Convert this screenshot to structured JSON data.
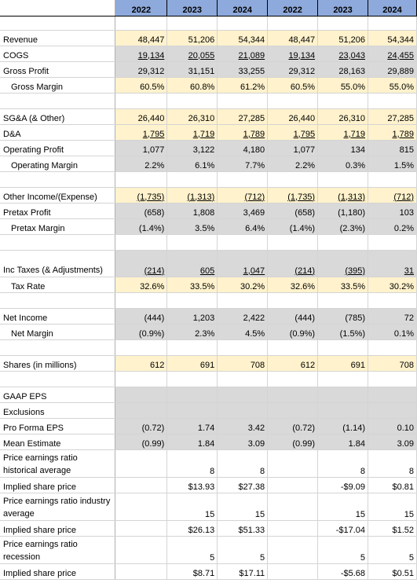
{
  "header": {
    "years": [
      "2022",
      "2023",
      "2024",
      "2022",
      "2023",
      "2024"
    ]
  },
  "rows": {
    "revenue": {
      "label": "Revenue",
      "values": [
        "48,447",
        "51,206",
        "54,344",
        "48,447",
        "51,206",
        "54,344"
      ]
    },
    "cogs": {
      "label": "COGS",
      "values": [
        "19,134",
        "20,055",
        "21,089",
        "19,134",
        "23,043",
        "24,455"
      ]
    },
    "gross_profit": {
      "label": "Gross Profit",
      "values": [
        "29,312",
        "31,151",
        "33,255",
        "29,312",
        "28,163",
        "29,889"
      ]
    },
    "gross_margin": {
      "label": "Gross Margin",
      "values": [
        "60.5%",
        "60.8%",
        "61.2%",
        "60.5%",
        "55.0%",
        "55.0%"
      ]
    },
    "sga": {
      "label": "SG&A (& Other)",
      "values": [
        "26,440",
        "26,310",
        "27,285",
        "26,440",
        "26,310",
        "27,285"
      ]
    },
    "da": {
      "label": "D&A",
      "values": [
        "1,795",
        "1,719",
        "1,789",
        "1,795",
        "1,719",
        "1,789"
      ]
    },
    "operating_profit": {
      "label": "Operating Profit",
      "values": [
        "1,077",
        "3,122",
        "4,180",
        "1,077",
        "134",
        "815"
      ]
    },
    "operating_margin": {
      "label": "Operating Margin",
      "values": [
        "2.2%",
        "6.1%",
        "7.7%",
        "2.2%",
        "0.3%",
        "1.5%"
      ]
    },
    "other_income": {
      "label": "Other Income/(Expense)",
      "values": [
        "(1,735)",
        "(1,313)",
        "(712)",
        "(1,735)",
        "(1,313)",
        "(712)"
      ]
    },
    "pretax_profit": {
      "label": "Pretax Profit",
      "values": [
        "(658)",
        "1,808",
        "3,469",
        "(658)",
        "(1,180)",
        "103"
      ]
    },
    "pretax_margin": {
      "label": "Pretax Margin",
      "values": [
        "(1.4%)",
        "3.5%",
        "6.4%",
        "(1.4%)",
        "(2.3%)",
        "0.2%"
      ]
    },
    "inc_taxes": {
      "label": "Inc Taxes (& Adjustments)",
      "values": [
        "(214)",
        "605",
        "1,047",
        "(214)",
        "(395)",
        "31"
      ]
    },
    "tax_rate": {
      "label": "Tax Rate",
      "values": [
        "32.6%",
        "33.5%",
        "30.2%",
        "32.6%",
        "33.5%",
        "30.2%"
      ]
    },
    "net_income": {
      "label": "Net Income",
      "values": [
        "(444)",
        "1,203",
        "2,422",
        "(444)",
        "(785)",
        "72"
      ]
    },
    "net_margin": {
      "label": "Net Margin",
      "values": [
        "(0.9%)",
        "2.3%",
        "4.5%",
        "(0.9%)",
        "(1.5%)",
        "0.1%"
      ]
    },
    "shares": {
      "label": "Shares (in millions)",
      "values": [
        "612",
        "691",
        "708",
        "612",
        "691",
        "708"
      ]
    },
    "gaap_eps": {
      "label": "GAAP EPS",
      "values": [
        "",
        "",
        "",
        "",
        "",
        ""
      ]
    },
    "exclusions": {
      "label": "Exclusions",
      "values": [
        "",
        "",
        "",
        "",
        "",
        ""
      ]
    },
    "pro_forma_eps": {
      "label": "Pro Forma EPS",
      "values": [
        "(0.72)",
        "1.74",
        "3.42",
        "(0.72)",
        "(1.14)",
        "0.10"
      ]
    },
    "mean_estimate": {
      "label": "Mean Estimate",
      "values": [
        "(0.99)",
        "1.84",
        "3.09",
        "(0.99)",
        "1.84",
        "3.09"
      ]
    },
    "pe_hist": {
      "label": "Price earnings ratio historical average",
      "values": [
        "",
        "8",
        "8",
        "",
        "8",
        "8"
      ]
    },
    "implied_hist": {
      "label": "Implied share price",
      "values": [
        "",
        "$13.93",
        "$27.38",
        "",
        "-$9.09",
        "$0.81"
      ]
    },
    "pe_industry": {
      "label": "Price earnings ratio industry average",
      "values": [
        "",
        "15",
        "15",
        "",
        "15",
        "15"
      ]
    },
    "implied_industry": {
      "label": "Implied share price",
      "values": [
        "",
        "$26.13",
        "$51.33",
        "",
        "-$17.04",
        "$1.52"
      ]
    },
    "pe_recession": {
      "label": "Price earnings ratio recession",
      "values": [
        "",
        "5",
        "5",
        "",
        "5",
        "5"
      ]
    },
    "implied_recession": {
      "label": "Implied share price",
      "values": [
        "",
        "$8.71",
        "$17.11",
        "",
        "-$5.68",
        "$0.51"
      ]
    }
  }
}
